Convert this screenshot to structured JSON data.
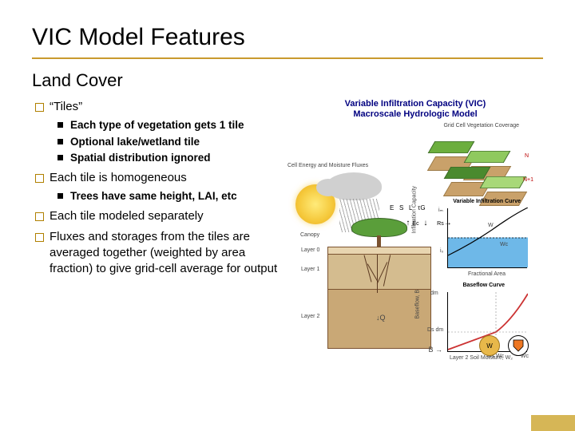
{
  "title": "VIC Model Features",
  "title_underline_color": "#c99a2e",
  "subtitle": "Land Cover",
  "bullets": [
    {
      "text": "“Tiles”",
      "children": [
        "Each type of vegetation gets 1 tile",
        "Optional lake/wetland tile",
        "Spatial distribution ignored"
      ]
    },
    {
      "text": "Each tile is homogeneous",
      "children": [
        "Trees have same height, LAI, etc"
      ]
    },
    {
      "text": "Each tile modeled separately",
      "children": []
    },
    {
      "text": "Fluxes and storages from the tiles are averaged together (weighted by area fraction) to give grid-cell average for output",
      "children": []
    }
  ],
  "diagram": {
    "title_line1": "Variable Infiltration Capacity (VIC)",
    "title_line2": "Macroscale Hydrologic Model",
    "grid_label": "Grid Cell Vegetation Coverage",
    "flux_label": "Cell Energy and Moisture Fluxes",
    "n_label": "N",
    "n1_label": "N+1",
    "canopy_label": "Canopy",
    "layer0_label": "Layer 0",
    "layer1_label": "Layer 1",
    "layer2_label": "Layer 2",
    "flux_E": [
      "E",
      "S",
      "L",
      "τG"
    ],
    "flux_sub": [
      "Et",
      "Ec",
      "P",
      "Rs"
    ],
    "infil_title": "Variable Infiltration Curve",
    "infil_ylabel": "Infiltration Capacity",
    "infil_xlabel": "Fractional Area",
    "infil_i0": "i₀",
    "infil_im": "iₘ",
    "infil_W": [
      "W",
      "Wc"
    ],
    "infil_B": "B",
    "baseflow_title": "Baseflow Curve",
    "baseflow_ylabel": "Baseflow, B",
    "baseflow_xlabel": "Layer 2 Soil Moisture, W₂",
    "baseflow_Ws": "Ws Wc",
    "baseflow_Wc": "Wc",
    "baseflow_Ds": "Ds dm",
    "baseflow_dm": "dm",
    "colors": {
      "veg_green": "#6cae3e",
      "soil_top": "#e8d5b0",
      "soil_mid": "#d4bc8f",
      "soil_deep": "#c9a876",
      "water_blue": "#6eb8e8",
      "curve_red": "#cc3333",
      "sun_yellow": "#f5c83a",
      "cloud_gray": "#d0d0d0"
    }
  },
  "accent_color": "#d6b656"
}
